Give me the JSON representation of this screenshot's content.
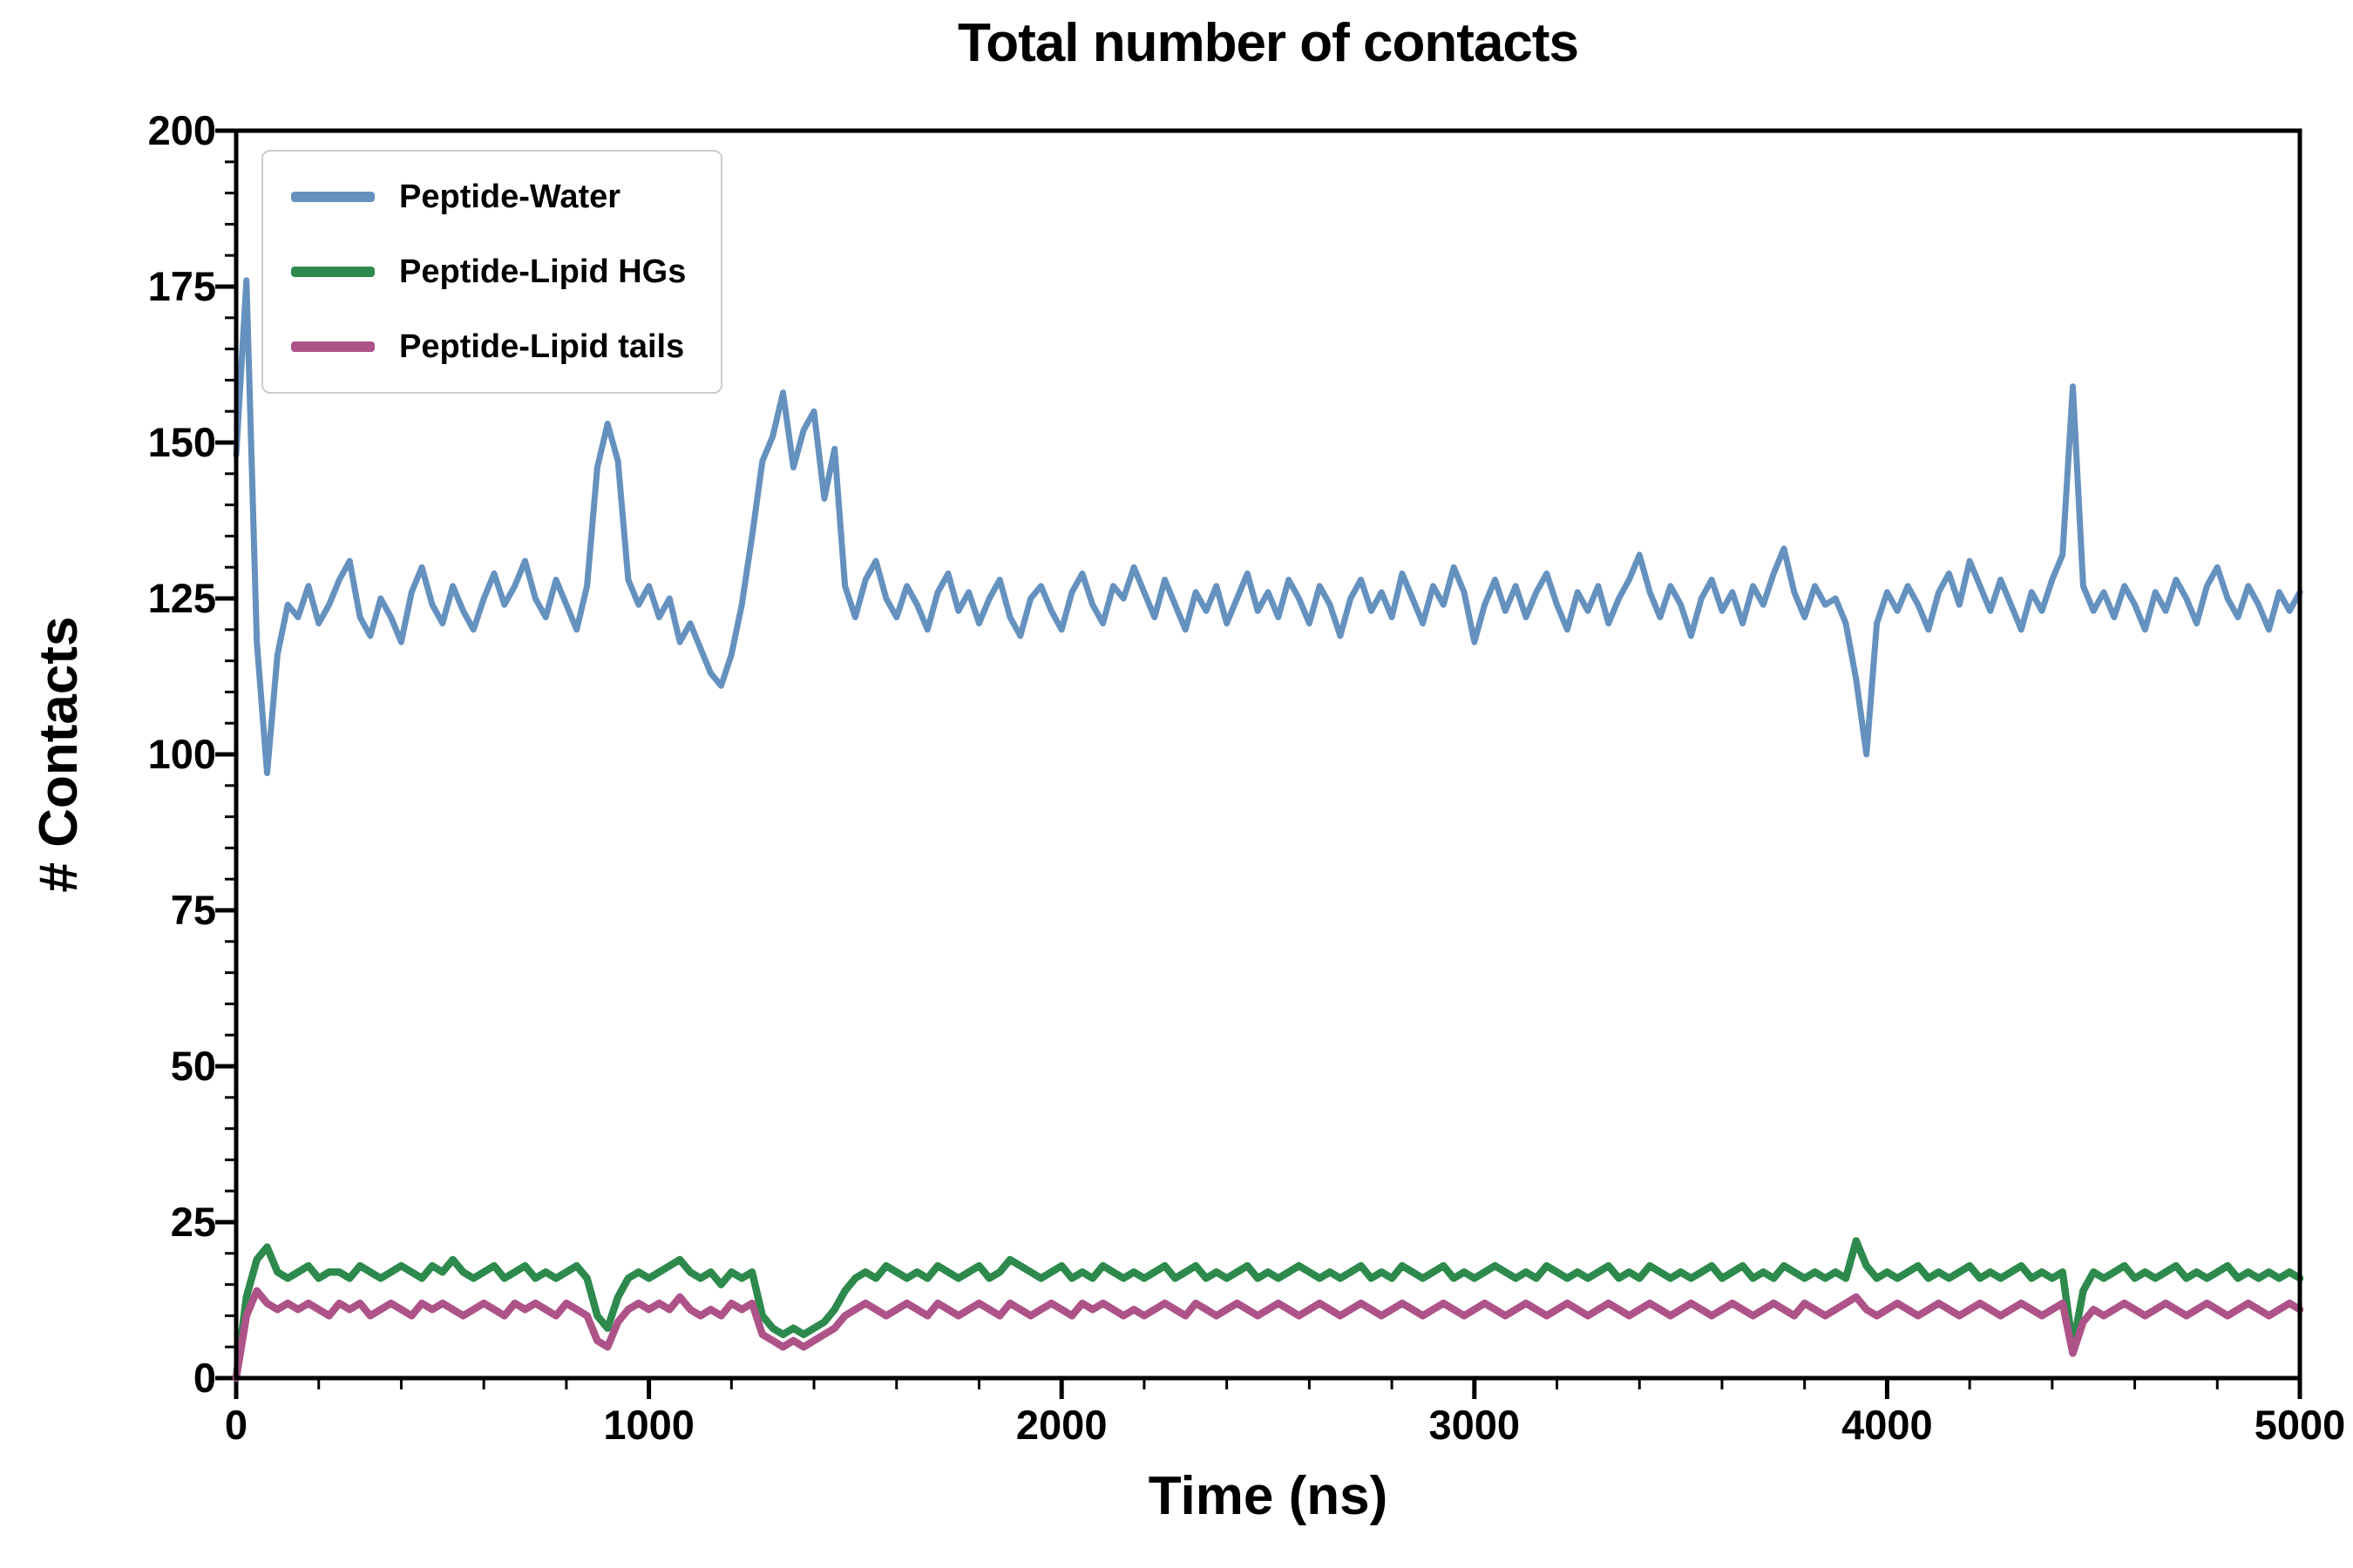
{
  "figure": {
    "background": "#ffffff",
    "frame_color": "#000000"
  },
  "chart_data": {
    "type": "line",
    "title": "Total number of contacts",
    "xlabel": "Time (ns)",
    "ylabel": "# Contacts",
    "xlim": [
      0,
      5000
    ],
    "ylim": [
      0,
      200
    ],
    "xticks": [
      0,
      1000,
      2000,
      3000,
      4000,
      5000
    ],
    "yticks": [
      0,
      25,
      50,
      75,
      100,
      125,
      150,
      175,
      200
    ],
    "x_minor_step": 200,
    "y_minor_step": 5,
    "grid": false,
    "legend_position": "upper left",
    "x": {
      "start": 0,
      "step": 25,
      "count": 201
    },
    "series": [
      {
        "name": "Peptide-Water",
        "color": "#6591bf",
        "values": [
          148,
          176,
          118,
          97,
          116,
          124,
          122,
          127,
          121,
          124,
          128,
          131,
          122,
          119,
          125,
          122,
          118,
          126,
          130,
          124,
          121,
          127,
          123,
          120,
          125,
          129,
          124,
          127,
          131,
          125,
          122,
          128,
          124,
          120,
          127,
          146,
          153,
          147,
          128,
          124,
          127,
          122,
          125,
          118,
          121,
          117,
          113,
          111,
          116,
          124,
          135,
          147,
          151,
          158,
          146,
          152,
          155,
          141,
          149,
          127,
          122,
          128,
          131,
          125,
          122,
          127,
          124,
          120,
          126,
          129,
          123,
          126,
          121,
          125,
          128,
          122,
          119,
          125,
          127,
          123,
          120,
          126,
          129,
          124,
          121,
          127,
          125,
          130,
          126,
          122,
          128,
          124,
          120,
          126,
          123,
          127,
          121,
          125,
          129,
          123,
          126,
          122,
          128,
          125,
          121,
          127,
          124,
          119,
          125,
          128,
          123,
          126,
          122,
          129,
          125,
          121,
          127,
          124,
          130,
          126,
          118,
          124,
          128,
          123,
          127,
          122,
          126,
          129,
          124,
          120,
          126,
          123,
          127,
          121,
          125,
          128,
          132,
          126,
          122,
          127,
          124,
          119,
          125,
          128,
          123,
          126,
          121,
          127,
          124,
          129,
          133,
          126,
          122,
          127,
          124,
          125,
          121,
          112,
          100,
          121,
          126,
          123,
          127,
          124,
          120,
          126,
          129,
          124,
          131,
          127,
          123,
          128,
          124,
          120,
          126,
          123,
          128,
          132,
          159,
          127,
          123,
          126,
          122,
          127,
          124,
          120,
          126,
          123,
          128,
          125,
          121,
          127,
          130,
          125,
          122,
          127,
          124,
          120,
          126,
          123,
          126
        ]
      },
      {
        "name": "Peptide-Lipid HGs",
        "color": "#2d8a4c",
        "values": [
          0,
          13,
          19,
          21,
          17,
          16,
          17,
          18,
          16,
          17,
          17,
          16,
          18,
          17,
          16,
          17,
          18,
          17,
          16,
          18,
          17,
          19,
          17,
          16,
          17,
          18,
          16,
          17,
          18,
          16,
          17,
          16,
          17,
          18,
          16,
          10,
          8,
          13,
          16,
          17,
          16,
          17,
          18,
          19,
          17,
          16,
          17,
          15,
          17,
          16,
          17,
          10,
          8,
          7,
          8,
          7,
          8,
          9,
          11,
          14,
          16,
          17,
          16,
          18,
          17,
          16,
          17,
          16,
          18,
          17,
          16,
          17,
          18,
          16,
          17,
          19,
          18,
          17,
          16,
          17,
          18,
          16,
          17,
          16,
          18,
          17,
          16,
          17,
          16,
          17,
          18,
          16,
          17,
          18,
          16,
          17,
          16,
          17,
          18,
          16,
          17,
          16,
          17,
          18,
          17,
          16,
          17,
          16,
          17,
          18,
          16,
          17,
          16,
          18,
          17,
          16,
          17,
          18,
          16,
          17,
          16,
          17,
          18,
          17,
          16,
          17,
          16,
          18,
          17,
          16,
          17,
          16,
          17,
          18,
          16,
          17,
          16,
          18,
          17,
          16,
          17,
          16,
          17,
          18,
          16,
          17,
          18,
          16,
          17,
          16,
          18,
          17,
          16,
          17,
          16,
          17,
          16,
          22,
          18,
          16,
          17,
          16,
          17,
          18,
          16,
          17,
          16,
          17,
          18,
          16,
          17,
          16,
          17,
          18,
          16,
          17,
          16,
          17,
          5,
          14,
          17,
          16,
          17,
          18,
          16,
          17,
          16,
          17,
          18,
          16,
          17,
          16,
          17,
          18,
          16,
          17,
          16,
          17,
          16,
          17,
          16
        ]
      },
      {
        "name": "Peptide-Lipid tails",
        "color": "#ad5388",
        "values": [
          0,
          10,
          14,
          12,
          11,
          12,
          11,
          12,
          11,
          10,
          12,
          11,
          12,
          10,
          11,
          12,
          11,
          10,
          12,
          11,
          12,
          11,
          10,
          11,
          12,
          11,
          10,
          12,
          11,
          12,
          11,
          10,
          12,
          11,
          10,
          6,
          5,
          9,
          11,
          12,
          11,
          12,
          11,
          13,
          11,
          10,
          11,
          10,
          12,
          11,
          12,
          7,
          6,
          5,
          6,
          5,
          6,
          7,
          8,
          10,
          11,
          12,
          11,
          10,
          11,
          12,
          11,
          10,
          12,
          11,
          10,
          11,
          12,
          11,
          10,
          12,
          11,
          10,
          11,
          12,
          11,
          10,
          12,
          11,
          12,
          11,
          10,
          11,
          10,
          11,
          12,
          11,
          10,
          12,
          11,
          10,
          11,
          12,
          11,
          10,
          11,
          12,
          11,
          10,
          11,
          12,
          11,
          10,
          11,
          12,
          11,
          10,
          11,
          12,
          11,
          10,
          11,
          12,
          11,
          10,
          11,
          12,
          11,
          10,
          11,
          12,
          11,
          10,
          11,
          12,
          11,
          10,
          11,
          12,
          11,
          10,
          11,
          12,
          11,
          10,
          11,
          12,
          11,
          10,
          11,
          12,
          11,
          10,
          11,
          12,
          11,
          10,
          12,
          11,
          10,
          11,
          12,
          13,
          11,
          10,
          11,
          12,
          11,
          10,
          11,
          12,
          11,
          10,
          11,
          12,
          11,
          10,
          11,
          12,
          11,
          10,
          11,
          12,
          4,
          9,
          11,
          10,
          11,
          12,
          11,
          10,
          11,
          12,
          11,
          10,
          11,
          12,
          11,
          10,
          11,
          12,
          11,
          10,
          11,
          12,
          11
        ]
      }
    ]
  }
}
